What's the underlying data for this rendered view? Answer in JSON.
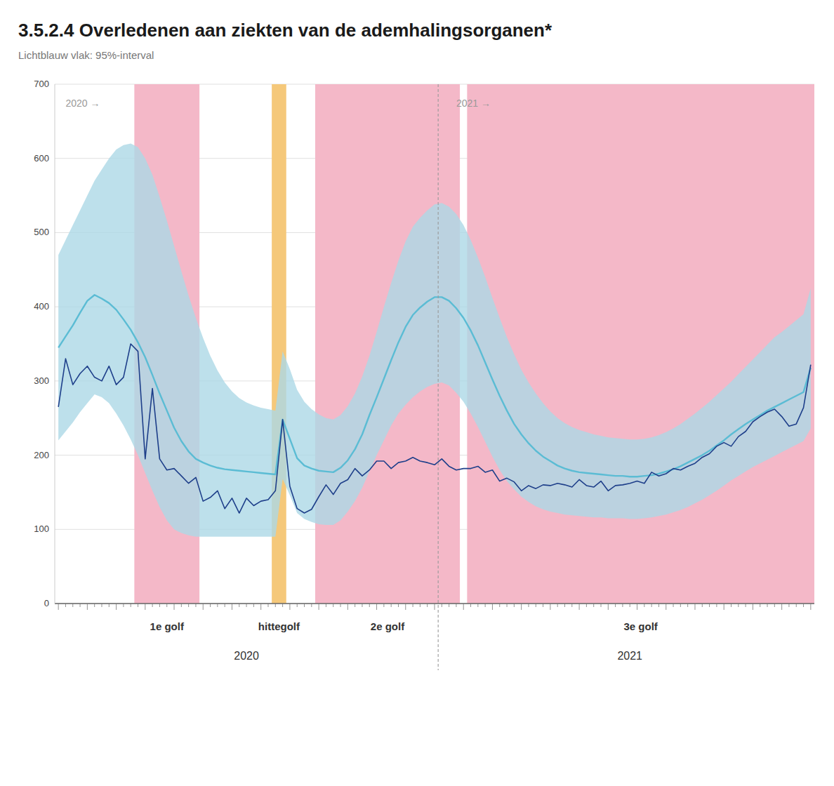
{
  "chart_data": {
    "type": "line",
    "title": "3.5.2.4 Overledenen aan ziekten van de ademhalingsorganen*",
    "subtitle": "Lichtblauw vlak: 95%-interval",
    "categories": [
      null,
      null,
      null,
      null,
      null,
      null,
      null,
      null,
      null,
      null,
      null,
      null,
      null,
      null,
      null,
      null,
      null,
      null,
      null,
      null,
      null,
      null,
      null,
      null,
      null,
      null,
      "2020",
      null,
      null,
      null,
      null,
      null,
      null,
      null,
      null,
      null,
      null,
      null,
      null,
      null,
      null,
      null,
      null,
      null,
      null,
      null,
      null,
      null,
      null,
      null,
      null,
      null,
      null,
      null,
      null,
      null,
      null,
      null,
      null,
      null,
      null,
      null,
      null,
      null,
      null,
      null,
      null,
      null,
      null,
      null,
      null,
      null,
      null,
      null,
      null,
      null,
      null,
      null,
      null,
      "2021",
      null,
      null,
      null,
      null,
      null,
      null,
      null,
      null,
      null,
      null,
      null,
      null,
      null,
      null,
      null,
      null,
      null,
      null,
      null,
      null,
      null,
      null,
      null,
      null,
      null
    ],
    "ylim": [
      0,
      700
    ],
    "yticks": [
      0,
      100,
      200,
      300,
      400,
      500,
      600,
      700
    ],
    "grid": true,
    "series": [
      {
        "type": "band",
        "color": "#add8e6",
        "lower": [
          220,
          232,
          244,
          258,
          270,
          282,
          278,
          270,
          256,
          240,
          221,
          200,
          176,
          152,
          130,
          112,
          100,
          95,
          92,
          90,
          90,
          90,
          90,
          90,
          90,
          90,
          90,
          90,
          90,
          90,
          90,
          168,
          146,
          122,
          114,
          110,
          107,
          106,
          106,
          112,
          124,
          138,
          156,
          178,
          200,
          220,
          240,
          256,
          268,
          278,
          286,
          292,
          296,
          298,
          294,
          284,
          272,
          256,
          238,
          218,
          198,
          180,
          165,
          154,
          144,
          137,
          131,
          127,
          124,
          122,
          120,
          119,
          118,
          117,
          116,
          116,
          115,
          115,
          115,
          114,
          114,
          115,
          116,
          118,
          120,
          123,
          126,
          130,
          135,
          140,
          146,
          152,
          159,
          166,
          172,
          178,
          184,
          189,
          194,
          199,
          204,
          209,
          214,
          219,
          236
        ],
        "upper": [
          470,
          490,
          510,
          530,
          550,
          570,
          585,
          600,
          612,
          618,
          620,
          615,
          600,
          578,
          548,
          516,
          482,
          448,
          415,
          385,
          358,
          334,
          314,
          298,
          286,
          277,
          271,
          267,
          264,
          262,
          260,
          340,
          316,
          288,
          272,
          262,
          255,
          250,
          248,
          254,
          266,
          283,
          306,
          334,
          366,
          400,
          432,
          462,
          488,
          508,
          520,
          530,
          538,
          540,
          535,
          525,
          510,
          490,
          466,
          440,
          412,
          385,
          359,
          336,
          315,
          298,
          283,
          270,
          259,
          250,
          243,
          238,
          234,
          231,
          228,
          226,
          224,
          223,
          222,
          221,
          221,
          222,
          224,
          227,
          231,
          236,
          242,
          249,
          256,
          264,
          272,
          281,
          290,
          299,
          309,
          319,
          329,
          339,
          349,
          359,
          366,
          374,
          382,
          390,
          425
        ]
      },
      {
        "type": "line",
        "color": "#5bbcd4",
        "values": [
          345,
          360,
          375,
          392,
          408,
          416,
          411,
          405,
          396,
          383,
          369,
          352,
          332,
          308,
          283,
          260,
          237,
          219,
          205,
          195,
          190,
          186,
          183,
          181,
          180,
          179,
          178,
          177,
          176,
          175,
          174,
          248,
          222,
          196,
          186,
          182,
          179,
          178,
          177,
          183,
          193,
          208,
          228,
          254,
          278,
          303,
          328,
          352,
          373,
          389,
          399,
          407,
          413,
          413,
          408,
          398,
          385,
          368,
          348,
          325,
          302,
          280,
          260,
          242,
          228,
          216,
          206,
          198,
          192,
          186,
          182,
          179,
          177,
          176,
          175,
          174,
          173,
          172,
          172,
          171,
          171,
          172,
          173,
          175,
          178,
          181,
          185,
          190,
          195,
          200,
          206,
          213,
          220,
          228,
          235,
          242,
          248,
          254,
          260,
          265,
          270,
          275,
          280,
          285,
          318
        ]
      },
      {
        "type": "line",
        "color": "#1e3f8a",
        "values": [
          265,
          330,
          295,
          310,
          320,
          305,
          300,
          320,
          295,
          305,
          350,
          340,
          195,
          290,
          195,
          180,
          182,
          172,
          162,
          170,
          138,
          143,
          152,
          128,
          142,
          122,
          142,
          132,
          138,
          140,
          152,
          248,
          158,
          128,
          122,
          127,
          144,
          160,
          147,
          162,
          167,
          182,
          172,
          180,
          192,
          192,
          182,
          190,
          192,
          197,
          192,
          190,
          187,
          195,
          185,
          180,
          182,
          182,
          185,
          177,
          180,
          165,
          169,
          164,
          152,
          159,
          155,
          160,
          159,
          162,
          160,
          157,
          167,
          159,
          157,
          165,
          152,
          159,
          160,
          162,
          165,
          162,
          177,
          172,
          175,
          182,
          180,
          185,
          189,
          197,
          202,
          212,
          217,
          212,
          225,
          232,
          245,
          252,
          258,
          262,
          252,
          239,
          242,
          264,
          322
        ]
      }
    ],
    "annotations": [
      {
        "type": "span",
        "start": 11,
        "end": 20,
        "label": "1e golf",
        "color": "#f4b8c8"
      },
      {
        "type": "span",
        "start": 36,
        "end": 56,
        "label": "2e golf",
        "color": "#f4b8c8"
      },
      {
        "type": "span",
        "start": 57,
        "end": 105,
        "label": "3e golf",
        "color": "#f4b8c8"
      },
      {
        "type": "span",
        "start": 30,
        "end": 32,
        "label": "hittegolf",
        "color": "#f5c87a"
      },
      {
        "type": "vline",
        "x": 53
      },
      {
        "type": "text",
        "text": "2020 →",
        "x": 1,
        "y": 682
      },
      {
        "type": "text",
        "text": "2021 →",
        "x": 55,
        "y": 682
      }
    ]
  }
}
